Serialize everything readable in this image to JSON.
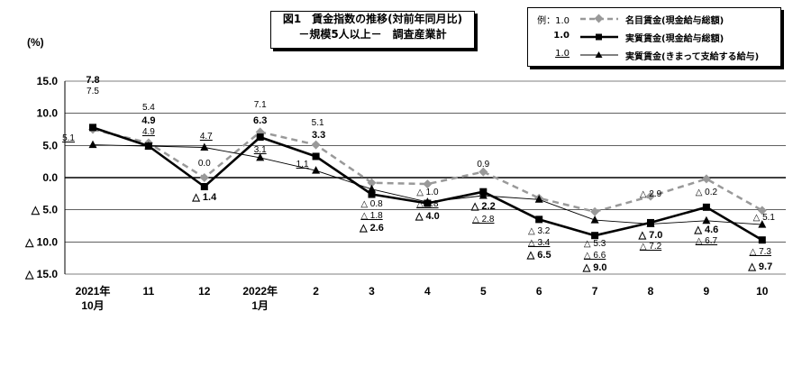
{
  "title": {
    "line1": "図1　賃金指数の推移(対前年同月比)",
    "line2": "－規模5人以上－　調査産業計"
  },
  "legend": {
    "example_prefix": "例：",
    "items": [
      {
        "example": "1.0",
        "label": "名目賃金(現金給与総額)"
      },
      {
        "example": "1.0",
        "label": "実質賃金(現金給与総額)"
      },
      {
        "example": "1.0",
        "label": "実質賃金(きまって支給する給与)"
      }
    ]
  },
  "colors": {
    "nominal": "#999999",
    "real_total": "#000000",
    "real_regular": "#000000"
  },
  "chart_data": {
    "type": "line",
    "ylabel": "(%)",
    "ylim": [
      -15.0,
      15.0
    ],
    "yticks": [
      "15.0",
      "10.0",
      "5.0",
      "0.0",
      "△ 5.0",
      "△ 10.0",
      "△ 15.0"
    ],
    "categories": [
      [
        "2021年",
        "10月"
      ],
      [
        "11"
      ],
      [
        "12"
      ],
      [
        "2022年",
        "1月"
      ],
      [
        "2"
      ],
      [
        "3"
      ],
      [
        "4"
      ],
      [
        "5"
      ],
      [
        "6"
      ],
      [
        "7"
      ],
      [
        "8"
      ],
      [
        "9"
      ],
      [
        "10"
      ]
    ],
    "series": [
      {
        "name": "名目賃金(現金給与総額)",
        "values": [
          7.5,
          5.4,
          0.0,
          7.1,
          5.1,
          -0.8,
          -1.0,
          0.9,
          -3.2,
          -5.3,
          -2.9,
          -0.2,
          -5.1
        ],
        "labels": [
          "7.5",
          "5.4",
          "0.0",
          "7.1",
          "5.1",
          "△ 0.8",
          "△ 1.0",
          "0.9",
          "△ 3.2",
          "△ 5.3",
          "△ 2.9",
          "△ 0.2",
          "△ 5.1"
        ],
        "style": "dashed",
        "marker": "diamond"
      },
      {
        "name": "実質賃金(現金給与総額)",
        "values": [
          7.8,
          4.9,
          -1.4,
          6.3,
          3.3,
          -2.6,
          -4.0,
          -2.2,
          -6.5,
          -9.0,
          -7.0,
          -4.6,
          -9.7
        ],
        "labels": [
          "7.8",
          "4.9",
          "△ 1.4",
          "6.3",
          "3.3",
          "△ 2.6",
          "△ 4.0",
          "△ 2.2",
          "△ 6.5",
          "△ 9.0",
          "△ 7.0",
          "△ 4.6",
          "△ 9.7"
        ],
        "style": "bold",
        "marker": "square"
      },
      {
        "name": "実質賃金(きまって支給する給与)",
        "values": [
          5.1,
          4.9,
          4.7,
          3.1,
          1.1,
          -1.8,
          -3.8,
          -2.8,
          -3.4,
          -6.6,
          -7.2,
          -6.7,
          -7.3
        ],
        "labels": [
          "5.1",
          "4.9",
          "4.7",
          "3.1",
          "1.1",
          "△ 1.8",
          "△ 3.8",
          "△ 2.8",
          "△ 3.4",
          "△ 6.6",
          "△ 7.2",
          "△ 6.7",
          "△ 7.3"
        ],
        "style": "thin",
        "marker": "triangle"
      }
    ]
  }
}
